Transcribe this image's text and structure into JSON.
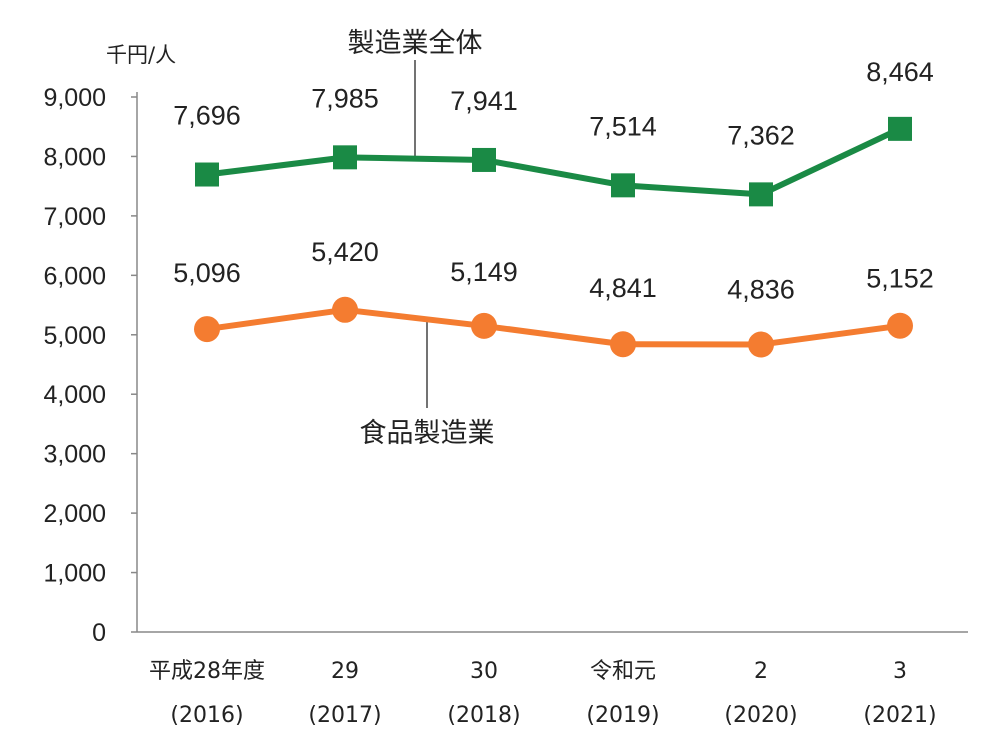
{
  "chart_data": {
    "type": "line",
    "unit_label": "千円/人",
    "ylim": [
      0,
      9000
    ],
    "yticks": [
      "0",
      "1,000",
      "2,000",
      "3,000",
      "4,000",
      "5,000",
      "6,000",
      "7,000",
      "8,000",
      "9,000"
    ],
    "ytick_values": [
      0,
      1000,
      2000,
      3000,
      4000,
      5000,
      6000,
      7000,
      8000,
      9000
    ],
    "categories": [
      {
        "line1": "平成28年度",
        "line2": "(2016)"
      },
      {
        "line1": "29",
        "line2": "(2017)"
      },
      {
        "line1": "30",
        "line2": "(2018)"
      },
      {
        "line1": "令和元",
        "line2": "(2019)"
      },
      {
        "line1": "2",
        "line2": "(2020)"
      },
      {
        "line1": "3",
        "line2": "(2021)"
      }
    ],
    "series": [
      {
        "name": "製造業全体",
        "color": "#1a8a45",
        "marker": "square",
        "values": [
          7696,
          7985,
          7941,
          7514,
          7362,
          8464
        ],
        "labels": [
          "7,696",
          "7,985",
          "7,941",
          "7,514",
          "7,362",
          "8,464"
        ]
      },
      {
        "name": "食品製造業",
        "color": "#f47c30",
        "marker": "circle",
        "values": [
          5096,
          5420,
          5149,
          4841,
          4836,
          5152
        ],
        "labels": [
          "5,096",
          "5,420",
          "5,149",
          "4,841",
          "4,836",
          "5,152"
        ]
      }
    ]
  }
}
